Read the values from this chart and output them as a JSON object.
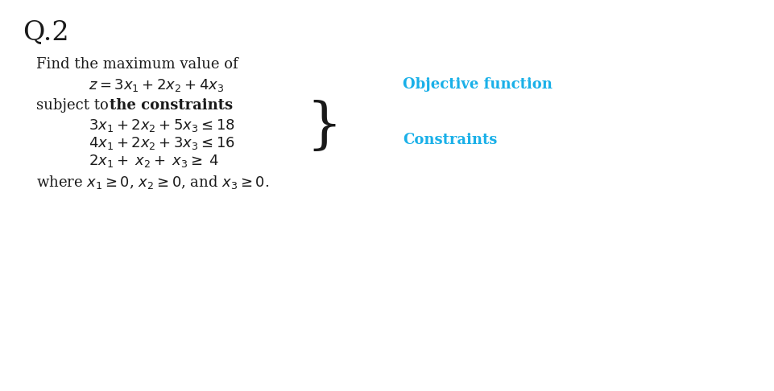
{
  "title": "Q.2",
  "bg_color": "#ffffff",
  "text_color": "#1a1a1a",
  "blue_color": "#1ab0e8",
  "find_text": "Find the maximum value of",
  "obj_eq": "$z = 3x_1 + 2x_2 + 4x_3$",
  "obj_label": "Objective function",
  "subject_text_normal": "subject to ",
  "subject_text_bold": "the constraints",
  "constraint1": "$3x_1 + 2x_2 + 5x_3 \\leq 18$",
  "constraint2": "$4x_1 + 2x_2 + 3x_3 \\leq 16$",
  "constraint3": "$2x_1 + \\; x_2 + \\; x_3 \\geq \\; 4$",
  "constraints_label": "Constraints",
  "nonnegativity": "where $x_1 \\geq 0$, $x_2 \\geq 0$, and $x_3 \\geq 0$.",
  "title_fontsize": 24,
  "text_fontsize": 13,
  "math_fontsize": 13,
  "label_fontsize": 13
}
